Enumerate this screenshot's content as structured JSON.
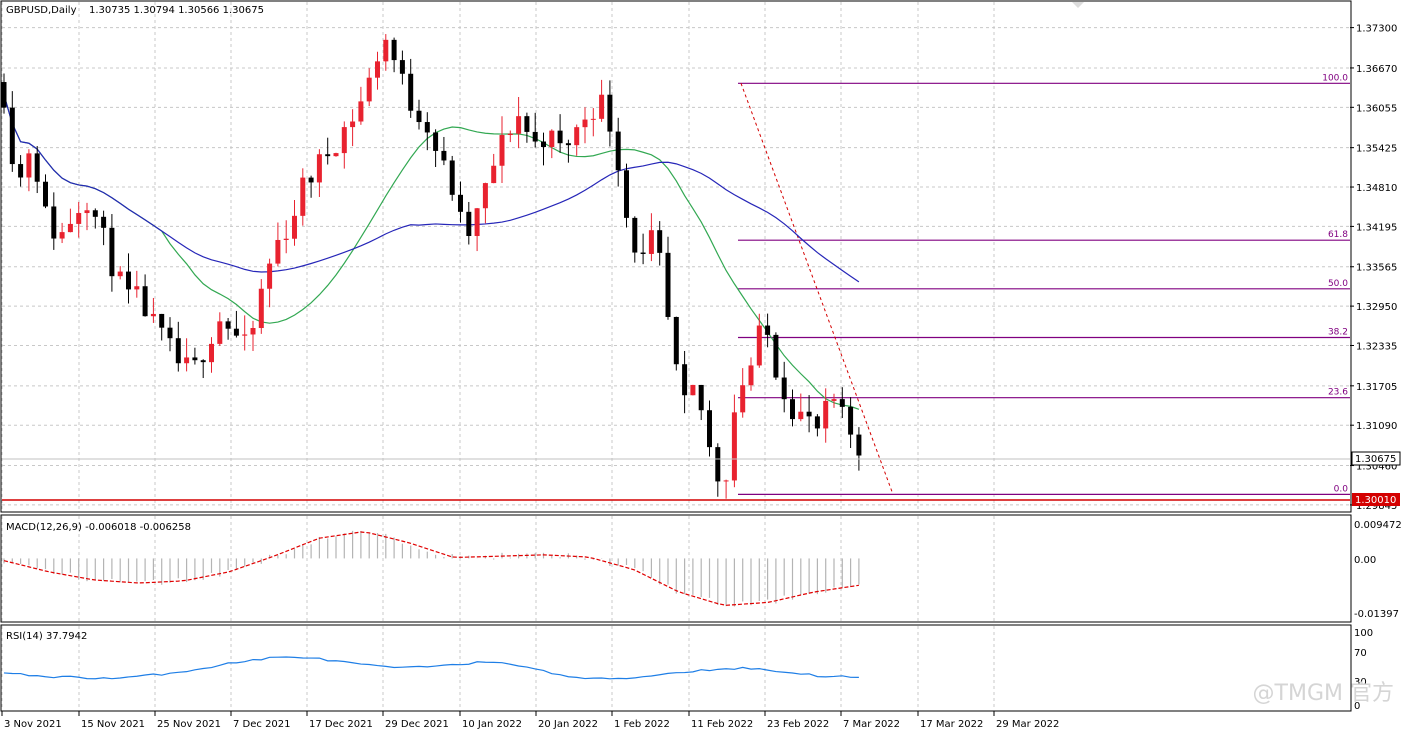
{
  "main_panel": {
    "header_symbol": "GBPUSD,Daily",
    "header_ohlc": "1.30735 1.30794 1.30566 1.30675",
    "current_price_label": "1.30675",
    "support_level_label": "1.30010"
  },
  "macd_panel": {
    "header": "MACD(12,26,9) -0.006018 -0.006258",
    "axis_labels": [
      "0.009472",
      "0.00",
      "-0.01397"
    ]
  },
  "rsi_panel": {
    "header": "RSI(14) 37.7942",
    "axis_labels": [
      "100",
      "70",
      "30",
      "0"
    ]
  },
  "watermark": "@TMGM 官方",
  "colors": {
    "bull": "#e8222f",
    "bear": "#000000",
    "ma_fast": "#32a852",
    "ma_slow": "#2626b8",
    "fib": "#800080",
    "support": "#d40000",
    "macd_signal": "#e00000",
    "macd_hist": "#b4b4b4",
    "rsi": "#1e7ee6",
    "grid": "#c8c8c8"
  },
  "chart_data": {
    "type": "candlestick",
    "symbol": "GBPUSD",
    "timeframe": "Daily",
    "x_tick_labels": [
      "3 Nov 2021",
      "15 Nov 2021",
      "25 Nov 2021",
      "7 Dec 2021",
      "17 Dec 2021",
      "29 Dec 2021",
      "10 Jan 2022",
      "20 Jan 2022",
      "1 Feb 2022",
      "11 Feb 2022",
      "23 Feb 2022",
      "7 Mar 2022",
      "17 Mar 2022",
      "29 Mar 2022"
    ],
    "y_tick_labels": [
      "1.37300",
      "1.36670",
      "1.36055",
      "1.35425",
      "1.34810",
      "1.34195",
      "1.33565",
      "1.32950",
      "1.32335",
      "1.31705",
      "1.31090",
      "1.30460",
      "1.29845"
    ],
    "ylim": [
      1.2975,
      1.377
    ],
    "close_path": [
      1.3625,
      1.3478,
      1.3555,
      1.344,
      1.3398,
      1.3435,
      1.347,
      1.342,
      1.3358,
      1.331,
      1.3305,
      1.3265,
      1.3235,
      1.32,
      1.3195,
      1.324,
      1.328,
      1.325,
      1.3225,
      1.332,
      1.339,
      1.342,
      1.348,
      1.351,
      1.354,
      1.357,
      1.36,
      1.365,
      1.372,
      1.3665,
      1.361,
      1.359,
      1.353,
      1.348,
      1.3395,
      1.3445,
      1.351,
      1.3565,
      1.3595,
      1.3545,
      1.3565,
      1.354,
      1.356,
      1.36,
      1.3615,
      1.356,
      1.342,
      1.336,
      1.341,
      1.326,
      1.313,
      1.317,
      1.307,
      1.3005,
      1.316,
      1.32,
      1.327,
      1.319,
      1.314,
      1.312,
      1.31,
      1.315,
      1.311,
      1.307
    ],
    "fibonacci": {
      "swing_high": 1.3643,
      "swing_low": 1.3001,
      "levels": [
        {
          "label": "100.0",
          "price": 1.3643
        },
        {
          "label": "61.8",
          "price": 1.3398
        },
        {
          "label": "50.0",
          "price": 1.3322
        },
        {
          "label": "38.2",
          "price": 1.3246
        },
        {
          "label": "23.6",
          "price": 1.3152
        },
        {
          "label": "0.0",
          "price": 1.3001
        }
      ]
    },
    "last_price": 1.30675,
    "support_line": 1.3001,
    "macd_ylim": [
      -0.01397,
      0.009472
    ],
    "macd_signal_path": [
      -0.0005,
      -0.003,
      -0.0048,
      -0.0055,
      -0.005,
      -0.003,
      0.0005,
      0.0045,
      0.006,
      0.0035,
      0.0002,
      0.0005,
      0.0008,
      0.0003,
      -0.0025,
      -0.0075,
      -0.0105,
      -0.0098,
      -0.0075,
      -0.006
    ],
    "rsi_ylim": [
      0,
      100
    ],
    "rsi_path": [
      43,
      40,
      38,
      37,
      41,
      47,
      55,
      62,
      64,
      58,
      52,
      50,
      55,
      57,
      53,
      40,
      36,
      38,
      44,
      48,
      50,
      45,
      40,
      38
    ]
  }
}
